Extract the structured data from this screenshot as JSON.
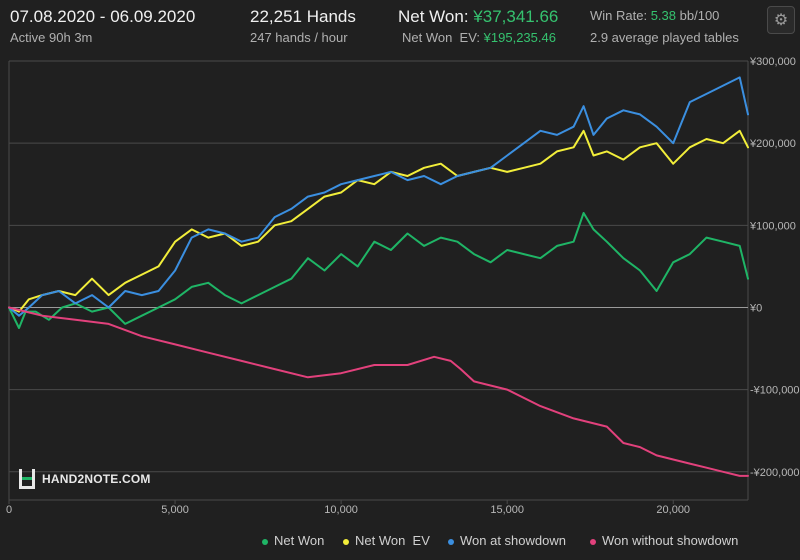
{
  "header": {
    "date_range": "07.08.2020 - 06.09.2020",
    "active": "Active 90h 3m",
    "hands": "22,251 Hands",
    "hands_per_hour": "247 hands / hour",
    "net_won_label": "Net Won:",
    "net_won_value": "¥37,341.66",
    "net_won_ev_label": "Net Won  EV:",
    "net_won_ev_value": "¥195,235.46",
    "win_rate_label": "Win Rate:",
    "win_rate_value": "5.38",
    "win_rate_unit": "bb/100",
    "tables": "2.9 average played tables",
    "settings_icon": "gear-icon"
  },
  "logo": {
    "text": "HAND2NOTE.COM"
  },
  "colors": {
    "net_won": "#1fb566",
    "net_won_ev": "#f2ee3a",
    "showdown": "#3b8fe0",
    "non_showdown": "#e2417c",
    "background": "#202020",
    "grid": "#4a4a4a",
    "zero_line": "#9a9a9a"
  },
  "chart_data": {
    "type": "line",
    "xlabel": "",
    "ylabel": "",
    "xlim": [
      0,
      22251
    ],
    "ylim": [
      -210000,
      300000
    ],
    "x_ticks": [
      {
        "value": 0,
        "label": "0"
      },
      {
        "value": 5000,
        "label": "5,000"
      },
      {
        "value": 10000,
        "label": "10,000"
      },
      {
        "value": 15000,
        "label": "15,000"
      },
      {
        "value": 20000,
        "label": "20,000"
      }
    ],
    "y_ticks": [
      {
        "value": 300000,
        "label": "¥300,000"
      },
      {
        "value": 200000,
        "label": "¥200,000"
      },
      {
        "value": 100000,
        "label": "¥100,000"
      },
      {
        "value": 0,
        "label": "¥0"
      },
      {
        "value": -100000,
        "label": "-¥100,000"
      },
      {
        "value": -200000,
        "label": "-¥200,000"
      }
    ],
    "grid": true,
    "legend_position": "bottom",
    "series": [
      {
        "name": "Net Won",
        "key": "net_won",
        "x": [
          0,
          300,
          500,
          800,
          1200,
          1600,
          2000,
          2500,
          3000,
          3500,
          4000,
          4500,
          5000,
          5500,
          6000,
          6500,
          7000,
          7500,
          8000,
          8500,
          9000,
          9500,
          10000,
          10500,
          11000,
          11500,
          12000,
          12500,
          13000,
          13500,
          14000,
          14500,
          15000,
          15500,
          16000,
          16500,
          17000,
          17300,
          17600,
          18000,
          18500,
          19000,
          19500,
          20000,
          20500,
          21000,
          21500,
          22000,
          22251
        ],
        "y": [
          0,
          -25000,
          -5000,
          -5000,
          -15000,
          0,
          5000,
          -5000,
          0,
          -20000,
          -10000,
          0,
          10000,
          25000,
          30000,
          15000,
          5000,
          15000,
          25000,
          35000,
          60000,
          45000,
          65000,
          50000,
          80000,
          70000,
          90000,
          75000,
          85000,
          80000,
          65000,
          55000,
          70000,
          65000,
          60000,
          75000,
          80000,
          115000,
          95000,
          80000,
          60000,
          45000,
          20000,
          55000,
          65000,
          85000,
          80000,
          75000,
          35000
        ]
      },
      {
        "name": "Net Won  EV",
        "key": "net_won_ev",
        "x": [
          0,
          300,
          600,
          1000,
          1500,
          2000,
          2500,
          3000,
          3500,
          4000,
          4500,
          5000,
          5500,
          6000,
          6500,
          7000,
          7500,
          8000,
          8500,
          9000,
          9500,
          10000,
          10500,
          11000,
          11500,
          12000,
          12500,
          13000,
          13500,
          14000,
          14500,
          15000,
          15500,
          16000,
          16500,
          17000,
          17300,
          17600,
          18000,
          18500,
          19000,
          19500,
          20000,
          20500,
          21000,
          21500,
          22000,
          22251
        ],
        "y": [
          0,
          -5000,
          10000,
          15000,
          20000,
          15000,
          35000,
          15000,
          30000,
          40000,
          50000,
          80000,
          95000,
          85000,
          90000,
          75000,
          80000,
          100000,
          105000,
          120000,
          135000,
          140000,
          155000,
          150000,
          165000,
          160000,
          170000,
          175000,
          160000,
          165000,
          170000,
          165000,
          170000,
          175000,
          190000,
          195000,
          215000,
          185000,
          190000,
          180000,
          195000,
          200000,
          175000,
          195000,
          205000,
          200000,
          215000,
          195000
        ]
      },
      {
        "name": "Won at showdown",
        "key": "showdown",
        "x": [
          0,
          300,
          600,
          1000,
          1500,
          2000,
          2500,
          3000,
          3500,
          4000,
          4500,
          5000,
          5500,
          6000,
          6500,
          7000,
          7500,
          8000,
          8500,
          9000,
          9500,
          10000,
          10500,
          11000,
          11500,
          12000,
          12500,
          13000,
          13500,
          14000,
          14500,
          15000,
          15500,
          16000,
          16500,
          17000,
          17300,
          17600,
          18000,
          18500,
          19000,
          19500,
          20000,
          20500,
          21000,
          21500,
          22000,
          22251
        ],
        "y": [
          0,
          -10000,
          0,
          15000,
          20000,
          5000,
          15000,
          0,
          20000,
          15000,
          20000,
          45000,
          85000,
          95000,
          90000,
          80000,
          85000,
          110000,
          120000,
          135000,
          140000,
          150000,
          155000,
          160000,
          165000,
          155000,
          160000,
          150000,
          160000,
          165000,
          170000,
          185000,
          200000,
          215000,
          210000,
          220000,
          245000,
          210000,
          230000,
          240000,
          235000,
          220000,
          200000,
          250000,
          260000,
          270000,
          280000,
          235000
        ]
      },
      {
        "name": "Won without showdown",
        "key": "non_showdown",
        "x": [
          0,
          500,
          1000,
          2000,
          3000,
          4000,
          5000,
          6000,
          7000,
          8000,
          9000,
          10000,
          11000,
          12000,
          12800,
          13300,
          13600,
          14000,
          15000,
          16000,
          17000,
          18000,
          18500,
          19000,
          19500,
          20000,
          20500,
          21000,
          21500,
          22000,
          22251
        ],
        "y": [
          0,
          -5000,
          -10000,
          -15000,
          -20000,
          -35000,
          -45000,
          -55000,
          -65000,
          -75000,
          -85000,
          -80000,
          -70000,
          -70000,
          -60000,
          -65000,
          -75000,
          -90000,
          -100000,
          -120000,
          -135000,
          -145000,
          -165000,
          -170000,
          -180000,
          -185000,
          -190000,
          -195000,
          -200000,
          -205000,
          -205000
        ]
      }
    ]
  }
}
